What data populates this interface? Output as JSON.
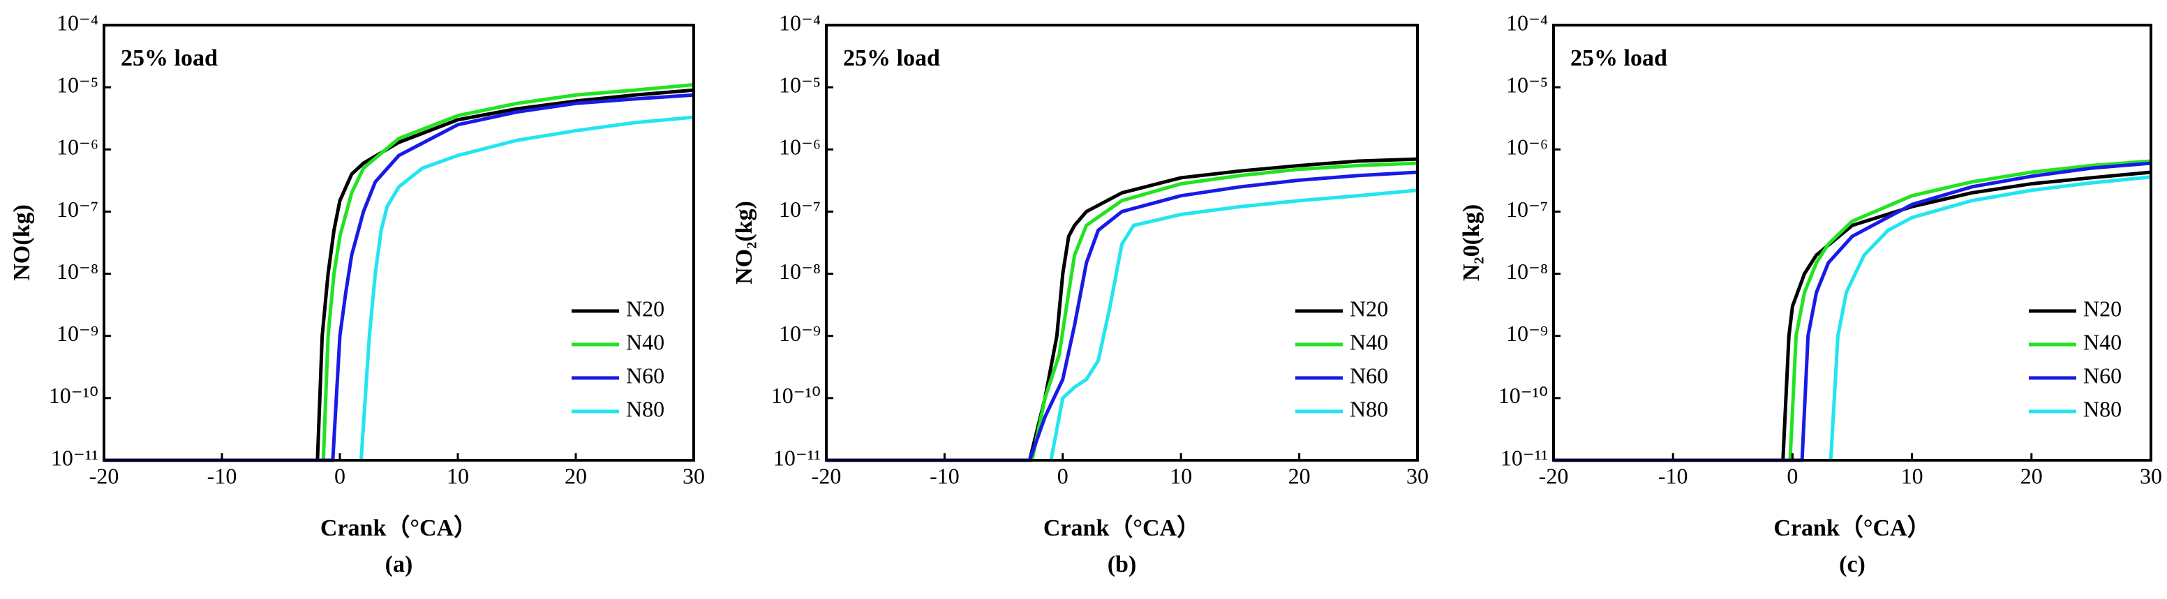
{
  "chart_data": [
    {
      "type": "line",
      "label": "(a)",
      "annotation": "25% load",
      "xlabel": "Crank（°CA）",
      "ylabel": "NO(kg)",
      "log_y": true,
      "legend": "lower right",
      "xlim": [
        -20,
        30
      ],
      "xticks": [
        -20,
        -10,
        0,
        10,
        20,
        30
      ],
      "ylim": [
        1e-11,
        0.0001
      ],
      "yticks": [
        {
          "value": 1e-11,
          "label": "10⁻¹¹"
        },
        {
          "value": 1e-10,
          "label": "10⁻¹⁰"
        },
        {
          "value": 1e-09,
          "label": "10⁻⁹"
        },
        {
          "value": 1e-08,
          "label": "10⁻⁸"
        },
        {
          "value": 1e-07,
          "label": "10⁻⁷"
        },
        {
          "value": 1e-06,
          "label": "10⁻⁶"
        },
        {
          "value": 1e-05,
          "label": "10⁻⁵"
        },
        {
          "value": 0.0001,
          "label": "10⁻⁴"
        }
      ],
      "series": [
        {
          "name": "N20",
          "color": "#000000",
          "x": [
            -20,
            -1.9,
            -1.5,
            -1,
            -0.5,
            0,
            1,
            2,
            5,
            10,
            15,
            20,
            25,
            30
          ],
          "values": [
            1e-11,
            1e-11,
            1e-09,
            1e-08,
            5e-08,
            1.5e-07,
            4e-07,
            6e-07,
            1.3e-06,
            3e-06,
            4.5e-06,
            6e-06,
            7.5e-06,
            9e-06
          ]
        },
        {
          "name": "N40",
          "color": "#22e322",
          "x": [
            -20,
            -1.4,
            -1,
            -0.5,
            0,
            1,
            2,
            5,
            10,
            15,
            20,
            25,
            30
          ],
          "values": [
            1e-11,
            1e-11,
            1e-09,
            1e-08,
            4e-08,
            2e-07,
            5e-07,
            1.5e-06,
            3.5e-06,
            5.5e-06,
            7.5e-06,
            9e-06,
            1.1e-05
          ]
        },
        {
          "name": "N60",
          "color": "#1a1ae6",
          "x": [
            -20,
            -0.6,
            0,
            0.5,
            1,
            2,
            3,
            5,
            10,
            15,
            20,
            25,
            30
          ],
          "values": [
            1e-11,
            1e-11,
            1e-09,
            5e-09,
            2e-08,
            1e-07,
            3e-07,
            8e-07,
            2.5e-06,
            4e-06,
            5.5e-06,
            6.5e-06,
            7.5e-06
          ]
        },
        {
          "name": "N80",
          "color": "#22e5f0",
          "x": [
            1.8,
            2.5,
            3,
            3.5,
            4,
            5,
            7,
            10,
            15,
            20,
            25,
            30
          ],
          "values": [
            1e-11,
            1e-09,
            1e-08,
            5e-08,
            1.2e-07,
            2.5e-07,
            5e-07,
            8e-07,
            1.4e-06,
            2e-06,
            2.7e-06,
            3.3e-06
          ]
        }
      ]
    },
    {
      "type": "line",
      "label": "(b)",
      "annotation": "25% load",
      "xlabel": "Crank（°CA）",
      "ylabel": "NO₂(kg)",
      "log_y": true,
      "legend": "lower right",
      "xlim": [
        -20,
        30
      ],
      "xticks": [
        -20,
        -10,
        0,
        10,
        20,
        30
      ],
      "ylim": [
        1e-11,
        0.0001
      ],
      "yticks": [
        {
          "value": 1e-11,
          "label": "10⁻¹¹"
        },
        {
          "value": 1e-10,
          "label": "10⁻¹⁰"
        },
        {
          "value": 1e-09,
          "label": "10⁻⁹"
        },
        {
          "value": 1e-08,
          "label": "10⁻⁸"
        },
        {
          "value": 1e-07,
          "label": "10⁻⁷"
        },
        {
          "value": 1e-06,
          "label": "10⁻⁶"
        },
        {
          "value": 1e-05,
          "label": "10⁻⁵"
        },
        {
          "value": 0.0001,
          "label": "10⁻⁴"
        }
      ],
      "series": [
        {
          "name": "N20",
          "color": "#000000",
          "x": [
            -20,
            -2.8,
            -1.5,
            -0.5,
            0,
            0.5,
            1,
            2,
            5,
            10,
            15,
            20,
            25,
            30
          ],
          "values": [
            1e-11,
            1e-11,
            1e-10,
            1e-09,
            1e-08,
            4e-08,
            6e-08,
            1e-07,
            2e-07,
            3.5e-07,
            4.5e-07,
            5.5e-07,
            6.5e-07,
            7e-07
          ]
        },
        {
          "name": "N40",
          "color": "#22e322",
          "x": [
            -20,
            -2.6,
            -1.5,
            -0.3,
            0.5,
            1,
            2,
            5,
            10,
            15,
            20,
            25,
            30
          ],
          "values": [
            1e-11,
            1e-11,
            1e-10,
            5e-10,
            5e-09,
            2e-08,
            6e-08,
            1.5e-07,
            2.8e-07,
            3.8e-07,
            4.8e-07,
            5.5e-07,
            6e-07
          ]
        },
        {
          "name": "N60",
          "color": "#1a1ae6",
          "x": [
            -20,
            -2.8,
            -1.5,
            0,
            1,
            2,
            3,
            5,
            10,
            15,
            20,
            25,
            30
          ],
          "values": [
            1e-11,
            1e-11,
            5e-11,
            2e-10,
            1.5e-09,
            1.5e-08,
            5e-08,
            1e-07,
            1.8e-07,
            2.5e-07,
            3.2e-07,
            3.8e-07,
            4.3e-07
          ]
        },
        {
          "name": "N80",
          "color": "#22e5f0",
          "x": [
            -1,
            0,
            1,
            2,
            3,
            4,
            5,
            6,
            10,
            15,
            20,
            25,
            30
          ],
          "values": [
            1e-11,
            1e-10,
            1.5e-10,
            2e-10,
            4e-10,
            3e-09,
            3e-08,
            6e-08,
            9e-08,
            1.2e-07,
            1.5e-07,
            1.8e-07,
            2.2e-07
          ]
        }
      ]
    },
    {
      "type": "line",
      "label": "(c)",
      "annotation": "25% load",
      "xlabel": "Crank（°CA）",
      "ylabel": "N₂0(kg)",
      "log_y": true,
      "legend": "lower right",
      "xlim": [
        -20,
        30
      ],
      "xticks": [
        -20,
        -10,
        0,
        10,
        20,
        30
      ],
      "ylim": [
        1e-11,
        0.0001
      ],
      "yticks": [
        {
          "value": 1e-11,
          "label": "10⁻¹¹"
        },
        {
          "value": 1e-10,
          "label": "10⁻¹⁰"
        },
        {
          "value": 1e-09,
          "label": "10⁻⁹"
        },
        {
          "value": 1e-08,
          "label": "10⁻⁸"
        },
        {
          "value": 1e-07,
          "label": "10⁻⁷"
        },
        {
          "value": 1e-06,
          "label": "10⁻⁶"
        },
        {
          "value": 1e-05,
          "label": "10⁻⁵"
        },
        {
          "value": 0.0001,
          "label": "10⁻⁴"
        }
      ],
      "series": [
        {
          "name": "N20",
          "color": "#000000",
          "x": [
            -20,
            -0.8,
            -0.3,
            0,
            1,
            2,
            5,
            10,
            15,
            20,
            25,
            30
          ],
          "values": [
            1e-11,
            1e-11,
            1e-09,
            3e-09,
            1e-08,
            2e-08,
            6e-08,
            1.2e-07,
            2e-07,
            2.8e-07,
            3.5e-07,
            4.3e-07
          ]
        },
        {
          "name": "N40",
          "color": "#22e322",
          "x": [
            -20,
            -0.2,
            0.3,
            1,
            2,
            3,
            5,
            10,
            15,
            20,
            25,
            30
          ],
          "values": [
            1e-11,
            1e-11,
            1e-09,
            5e-09,
            1.5e-08,
            3e-08,
            7e-08,
            1.8e-07,
            3e-07,
            4.3e-07,
            5.5e-07,
            6.5e-07
          ]
        },
        {
          "name": "N60",
          "color": "#1a1ae6",
          "x": [
            -20,
            0.8,
            1.3,
            2,
            3,
            5,
            10,
            15,
            20,
            25,
            30
          ],
          "values": [
            1e-11,
            1e-11,
            1e-09,
            5e-09,
            1.5e-08,
            4e-08,
            1.3e-07,
            2.5e-07,
            3.7e-07,
            5e-07,
            6e-07
          ]
        },
        {
          "name": "N80",
          "color": "#22e5f0",
          "x": [
            3.2,
            3.8,
            4.5,
            6,
            8,
            10,
            15,
            20,
            25,
            30
          ],
          "values": [
            1e-11,
            1e-09,
            5e-09,
            2e-08,
            5e-08,
            8e-08,
            1.5e-07,
            2.2e-07,
            2.9e-07,
            3.6e-07
          ]
        }
      ]
    }
  ]
}
